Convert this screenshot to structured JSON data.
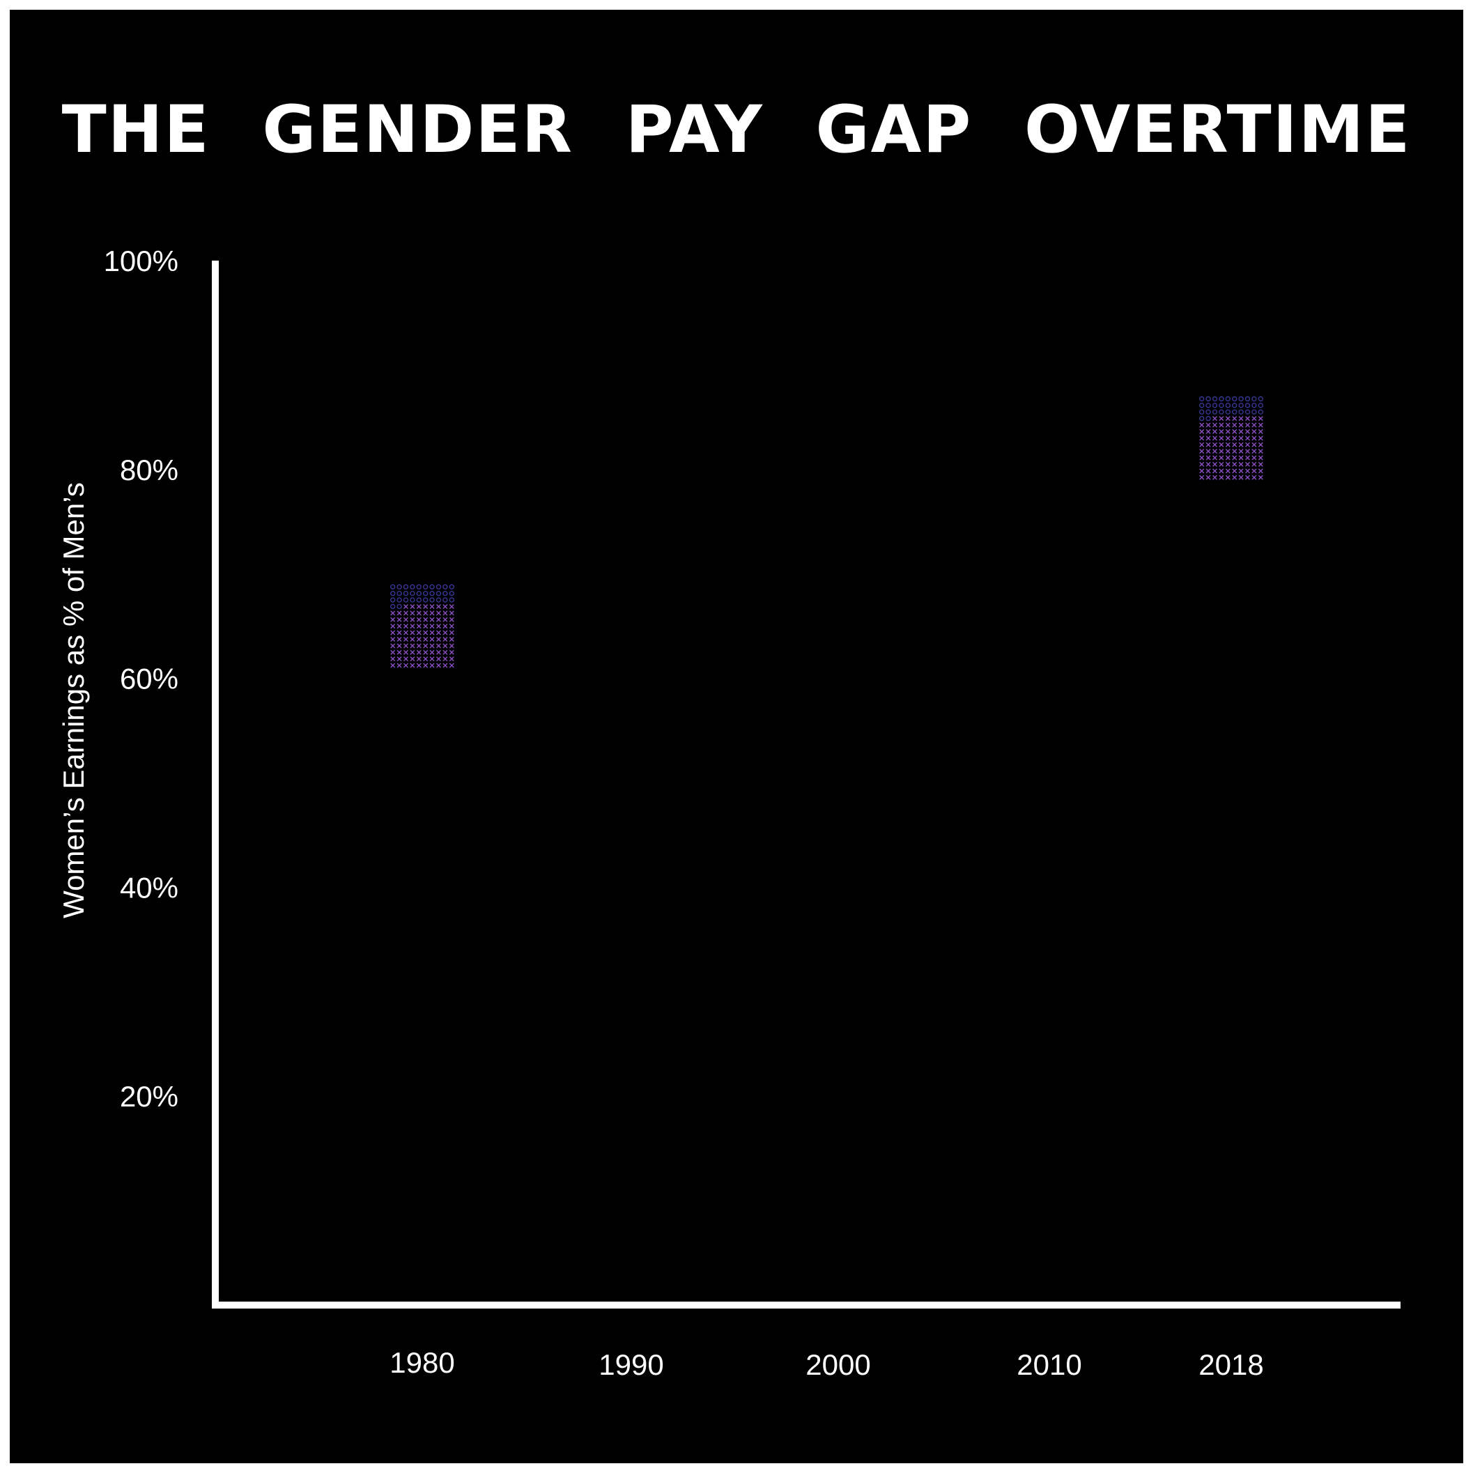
{
  "chart_data": {
    "type": "scatter",
    "title": "THE GENDER PAY GAP OVERTIME",
    "xlabel": "",
    "ylabel": "Women’s Earnings as % of Men’s",
    "x_ticks": [
      "1980",
      "1990",
      "2000",
      "2010",
      "2018"
    ],
    "y_ticks": [
      "20%",
      "40%",
      "60%",
      "80%",
      "100%"
    ],
    "ylim": [
      0,
      100
    ],
    "grid": false,
    "legend": "none",
    "colors": {
      "background": "#000000",
      "axis": "#ffffff",
      "text": "#ffffff",
      "marker_o": "#3a3a9e",
      "marker_x": "#8a4fc2"
    },
    "points": [
      {
        "x": "1980",
        "y": 65
      },
      {
        "x": "2018",
        "y": 83
      }
    ]
  }
}
